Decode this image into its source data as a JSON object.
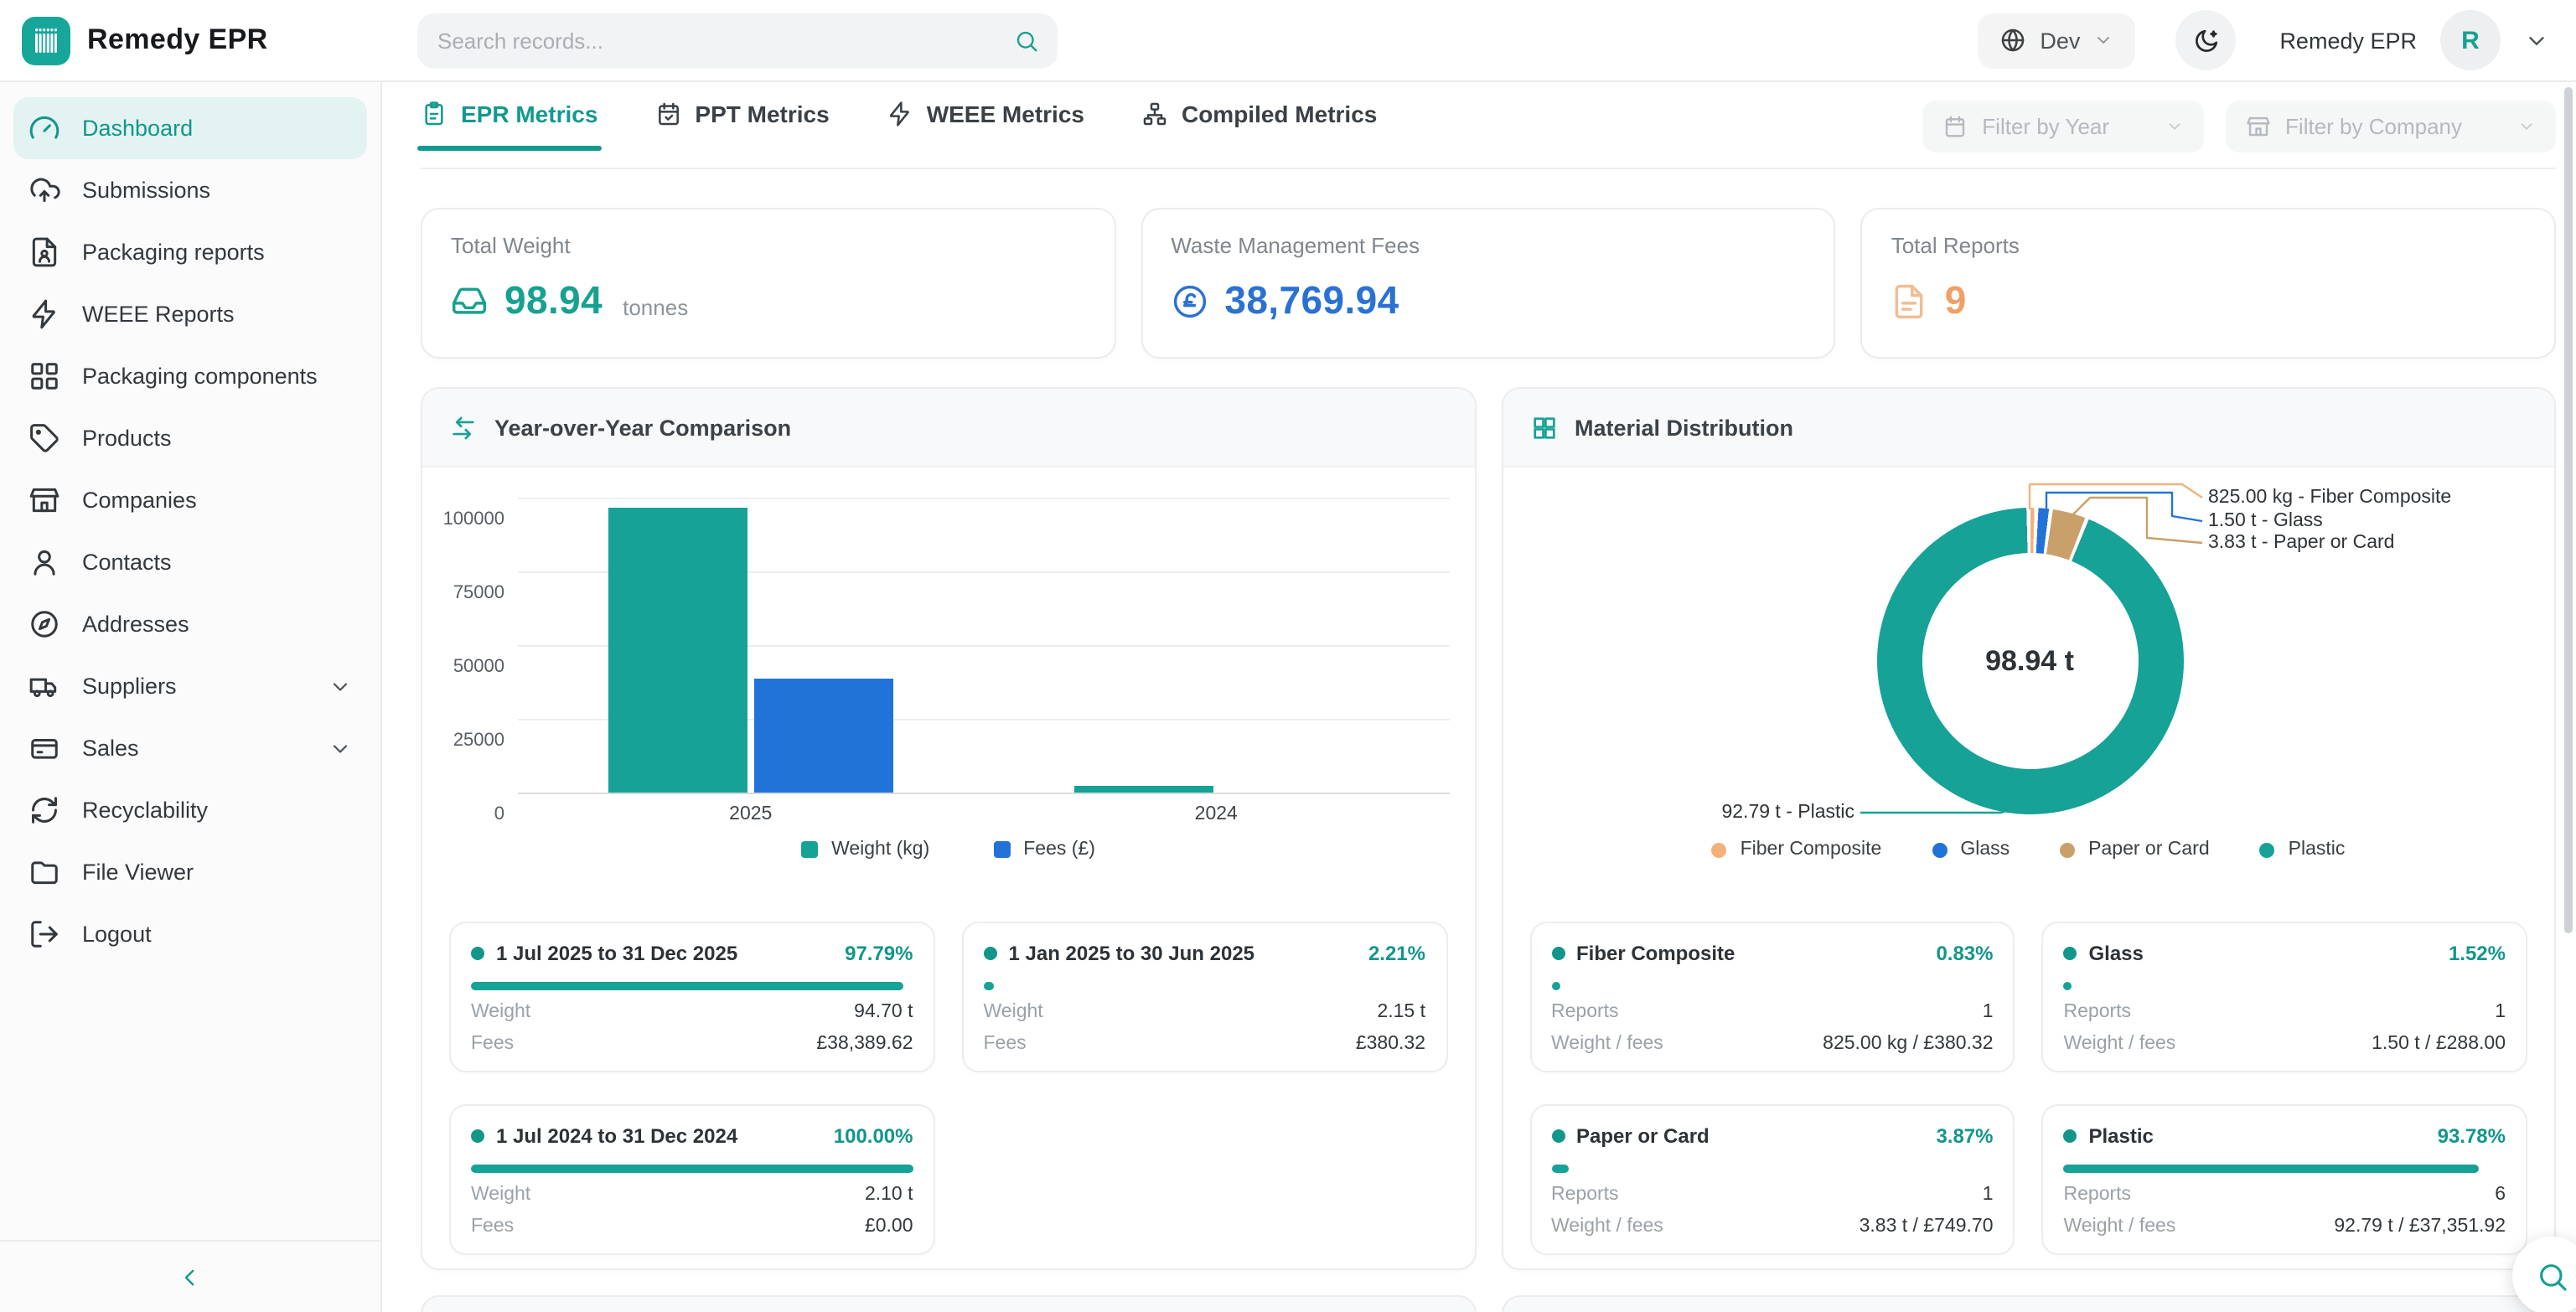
{
  "app": {
    "title": "Remedy EPR"
  },
  "topbar": {
    "search_placeholder": "Search records...",
    "environment": "Dev",
    "account_name": "Remedy EPR",
    "avatar_initial": "R"
  },
  "sidebar": {
    "items": [
      {
        "label": "Dashboard",
        "icon": "gauge",
        "active": true
      },
      {
        "label": "Submissions",
        "icon": "cloud-upload"
      },
      {
        "label": "Packaging reports",
        "icon": "file-user"
      },
      {
        "label": "WEEE Reports",
        "icon": "zap"
      },
      {
        "label": "Packaging components",
        "icon": "blocks"
      },
      {
        "label": "Products",
        "icon": "tag"
      },
      {
        "label": "Companies",
        "icon": "store"
      },
      {
        "label": "Contacts",
        "icon": "user"
      },
      {
        "label": "Addresses",
        "icon": "compass"
      },
      {
        "label": "Suppliers",
        "icon": "truck",
        "expandable": true
      },
      {
        "label": "Sales",
        "icon": "credit-card",
        "expandable": true
      },
      {
        "label": "Recyclability",
        "icon": "refresh"
      },
      {
        "label": "File Viewer",
        "icon": "folder"
      },
      {
        "label": "Logout",
        "icon": "log-out"
      }
    ]
  },
  "tabs": [
    {
      "label": "EPR Metrics",
      "icon": "clipboard",
      "active": true
    },
    {
      "label": "PPT Metrics",
      "icon": "calendar-check",
      "active": false
    },
    {
      "label": "WEEE Metrics",
      "icon": "zap",
      "active": false
    },
    {
      "label": "Compiled Metrics",
      "icon": "network",
      "active": false
    }
  ],
  "filters": [
    {
      "label": "Filter by Year",
      "icon": "calendar"
    },
    {
      "label": "Filter by Company",
      "icon": "store"
    }
  ],
  "stats": [
    {
      "label": "Total Weight",
      "icon": "inbox",
      "value": "98.94",
      "unit": "tonnes",
      "color": "#17a190"
    },
    {
      "label": "Waste Management Fees",
      "icon": "pound",
      "value": "38,769.94",
      "unit": "",
      "color": "#2b71d3"
    },
    {
      "label": "Total Reports",
      "icon": "file-text",
      "value": "9",
      "unit": "",
      "color": "#efa066"
    }
  ],
  "chart_data": [
    {
      "type": "bar",
      "title": "Year-over-Year Comparison",
      "categories": [
        "2025",
        "2024"
      ],
      "series": [
        {
          "name": "Weight (kg)",
          "color": "#16a296",
          "values": [
            96850,
            2100
          ]
        },
        {
          "name": "Fees (£)",
          "color": "#2273d8",
          "values": [
            38770,
            0
          ]
        }
      ],
      "ylim": [
        0,
        100000
      ],
      "yticks": [
        0,
        25000,
        50000,
        75000,
        100000
      ],
      "grid": true,
      "legend_position": "bottom"
    },
    {
      "type": "pie",
      "title": "Material Distribution",
      "center_label": "98.94 t",
      "labels": [
        "Fiber Composite",
        "Glass",
        "Paper or Card",
        "Plastic"
      ],
      "values_percent": [
        0.83,
        1.52,
        3.87,
        93.78
      ],
      "values_weight": [
        "825.00 kg",
        "1.50 t",
        "3.83 t",
        "92.79 t"
      ],
      "colors": [
        "#f2b17b",
        "#2273d8",
        "#c9a06a",
        "#16a296"
      ],
      "callouts_right": [
        "825.00 kg - Fiber Composite",
        "1.50 t - Glass",
        "3.83 t - Paper or Card"
      ],
      "callout_left": "92.79 t - Plastic",
      "legend_position": "bottom"
    }
  ],
  "labels": {
    "weight": "Weight",
    "fees": "Fees",
    "reports": "Reports",
    "weight_fees": "Weight / fees"
  },
  "period_cards": [
    {
      "label": "1 Jul 2025 to 31 Dec 2025",
      "percent": "97.79%",
      "weight": "94.70 t",
      "fees": "£38,389.62"
    },
    {
      "label": "1 Jan 2025 to 30 Jun 2025",
      "percent": "2.21%",
      "weight": "2.15 t",
      "fees": "£380.32"
    },
    {
      "label": "1 Jul 2024 to 31 Dec 2024",
      "percent": "100.00%",
      "weight": "2.10 t",
      "fees": "£0.00"
    }
  ],
  "material_cards": [
    {
      "name": "Fiber Composite",
      "percent": "0.83%",
      "reports": "1",
      "weight_fees": "825.00 kg / £380.32"
    },
    {
      "name": "Glass",
      "percent": "1.52%",
      "reports": "1",
      "weight_fees": "1.50 t / £288.00"
    },
    {
      "name": "Paper or Card",
      "percent": "3.87%",
      "reports": "1",
      "weight_fees": "3.83 t / £749.70"
    },
    {
      "name": "Plastic",
      "percent": "93.78%",
      "reports": "6",
      "weight_fees": "92.79 t / £37,351.92"
    }
  ],
  "colors": {
    "accent": "#16a296",
    "accent_dark": "#12968b",
    "blue": "#2273d8",
    "orange": "#efa066",
    "tan": "#c9a06a",
    "peach": "#f2b17b"
  }
}
